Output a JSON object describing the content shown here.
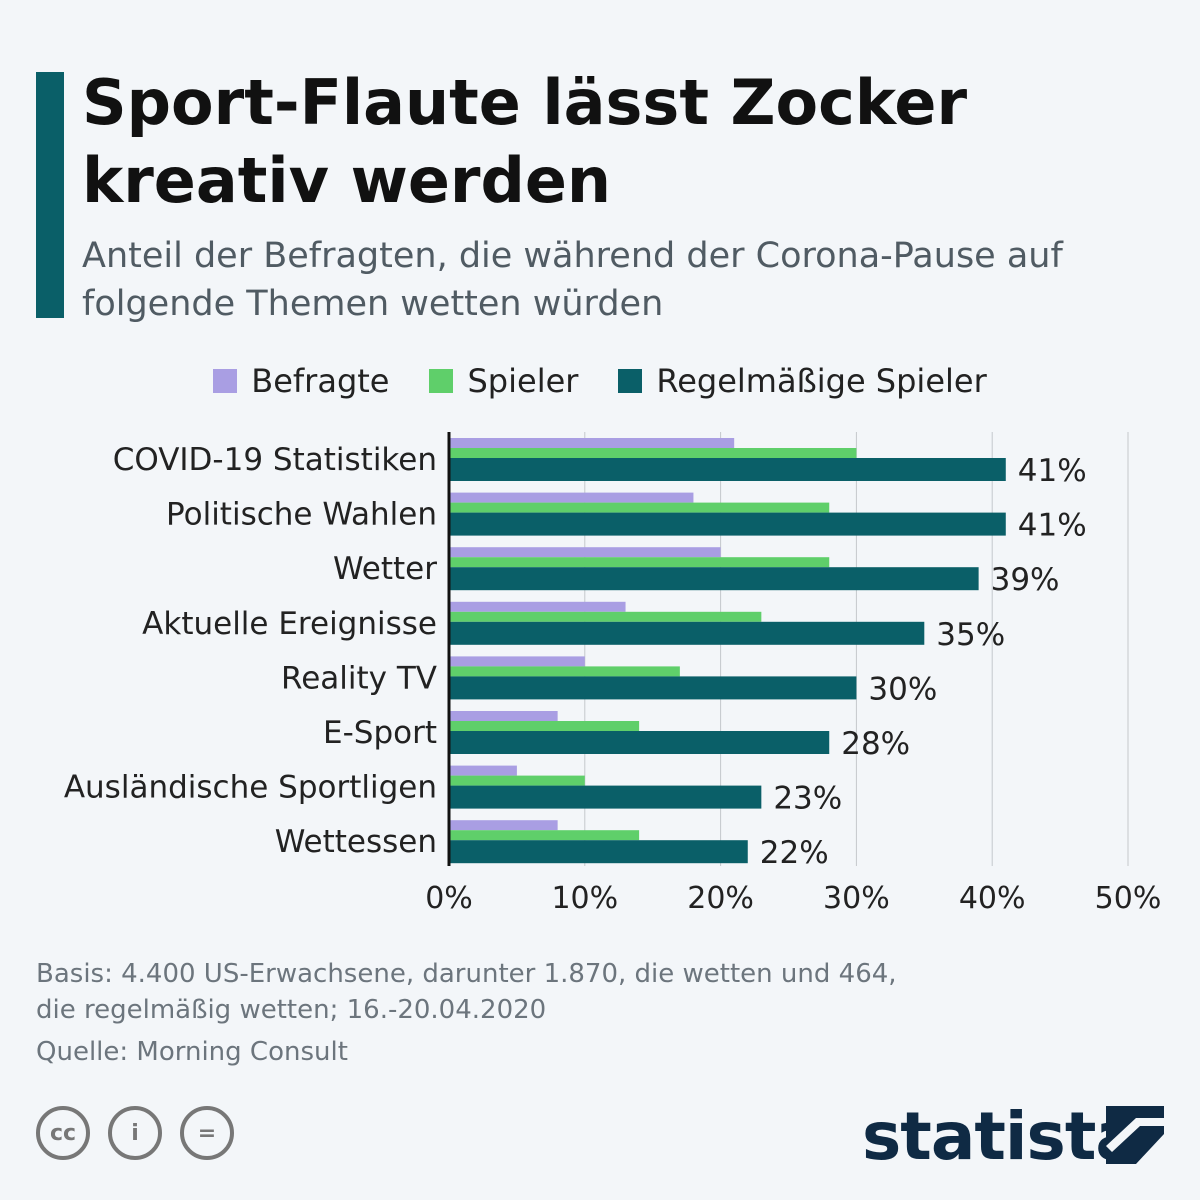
{
  "title": "Sport-Flaute lässt Zocker kreativ werden",
  "subtitle": "Anteil der Befragten, die während der Corona-Pause auf folgende Themen wetten würden",
  "colors": {
    "Befragte": "#a99ee3",
    "Spieler": "#5fcf6a",
    "Regelmäßige Spieler": "#0a5f68",
    "accent": "#0a5f68",
    "background": "#f3f6f9"
  },
  "chart_data": {
    "type": "bar",
    "orientation": "horizontal",
    "categories": [
      "COVID-19 Statistiken",
      "Politische Wahlen",
      "Wetter",
      "Aktuelle Ereignisse",
      "Reality TV",
      "E-Sport",
      "Ausländische Sportligen",
      "Wettessen"
    ],
    "series": [
      {
        "name": "Befragte",
        "values": [
          21,
          18,
          20,
          13,
          10,
          8,
          5,
          8
        ]
      },
      {
        "name": "Spieler",
        "values": [
          30,
          28,
          28,
          23,
          17,
          14,
          10,
          14
        ]
      },
      {
        "name": "Regelmäßige Spieler",
        "values": [
          41,
          41,
          39,
          35,
          30,
          28,
          23,
          22
        ]
      }
    ],
    "data_labels": [
      "41%",
      "41%",
      "39%",
      "35%",
      "30%",
      "28%",
      "23%",
      "22%"
    ],
    "xticks": [
      "0%",
      "10%",
      "20%",
      "30%",
      "40%",
      "50%"
    ],
    "xlim": [
      0,
      50
    ],
    "grid": true,
    "legend": "top"
  },
  "footer": {
    "basis": "Basis: 4.400 US-Erwachsene, darunter 1.870, die wetten und 464,",
    "basis2": "die regelmäßig wetten; 16.-20.04.2020",
    "source": "Quelle: Morning Consult"
  },
  "license": {
    "cc": "cc",
    "by": "i",
    "nd": "="
  },
  "brand": "statista"
}
